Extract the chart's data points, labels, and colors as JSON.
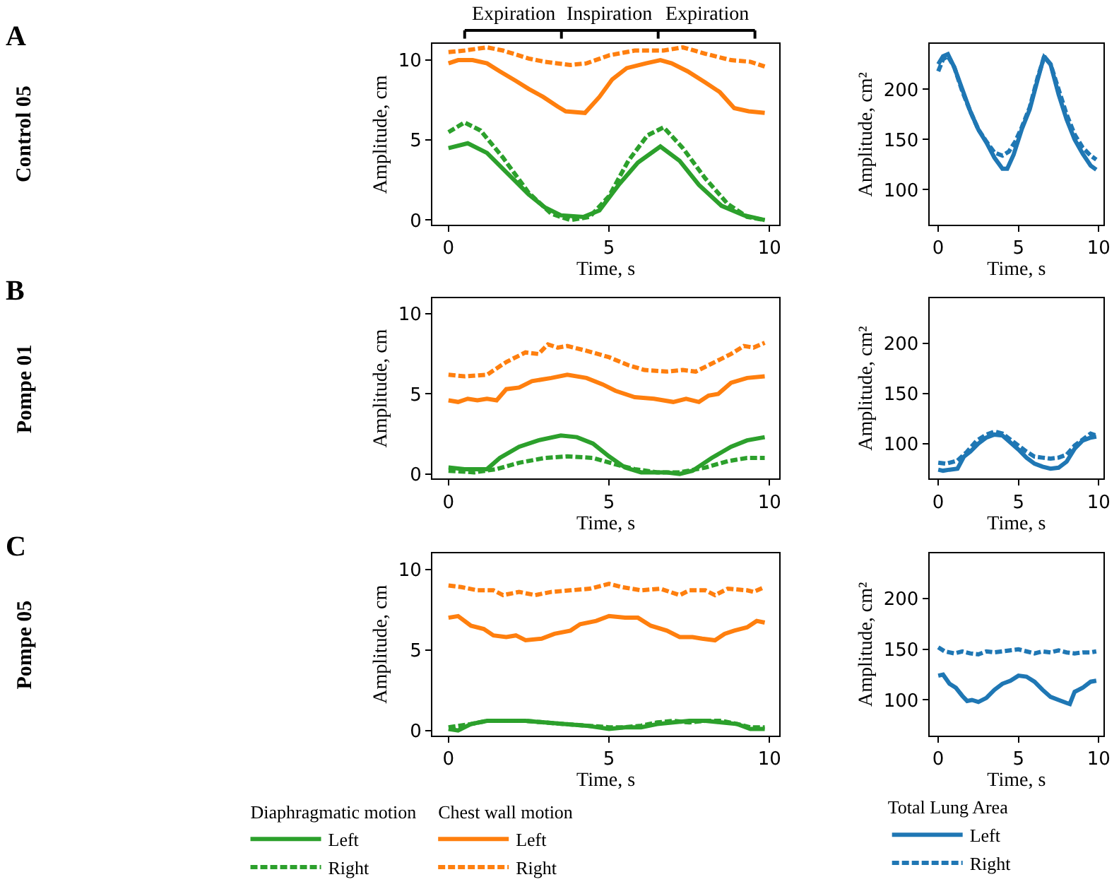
{
  "chart_data": [
    {
      "type": "line",
      "xlabel": "Time, s",
      "ylabel": "Amplitude, cm",
      "xlim": [
        -0.5,
        10.3
      ],
      "xticks": [
        0,
        5,
        10
      ],
      "ylim": [
        -0.3,
        11
      ],
      "yticks": [
        0,
        5,
        10
      ],
      "annotations": [
        "A",
        "Control 05",
        "Expiration",
        "Inspiration",
        "Expiration"
      ],
      "series": [
        {
          "color": "#ff7f0e",
          "line_style": "solid",
          "x": [
            0,
            0.3,
            0.75,
            1.2,
            1.6,
            2.1,
            2.5,
            2.95,
            3.4,
            3.65,
            4.25,
            4.7,
            5.1,
            5.55,
            6.15,
            6.6,
            6.95,
            7.45,
            8.0,
            8.45,
            8.9,
            9.35,
            9.85
          ],
          "values": [
            9.8,
            10.0,
            10.0,
            9.8,
            9.3,
            8.7,
            8.2,
            7.7,
            7.1,
            6.8,
            6.7,
            7.7,
            8.8,
            9.5,
            9.8,
            10.0,
            9.8,
            9.3,
            8.6,
            8.0,
            7.0,
            6.8,
            6.7
          ]
        },
        {
          "color": "#ff7f0e",
          "line_style": "dashed",
          "x": [
            0,
            0.5,
            1.2,
            1.7,
            2.5,
            3.0,
            3.8,
            4.3,
            5.0,
            5.8,
            6.7,
            7.3,
            8.0,
            8.8,
            9.4,
            9.85
          ],
          "values": [
            10.5,
            10.6,
            10.8,
            10.6,
            10.1,
            9.9,
            9.7,
            9.8,
            10.3,
            10.6,
            10.6,
            10.8,
            10.4,
            10.0,
            9.9,
            9.6
          ]
        },
        {
          "color": "#2ca02c",
          "line_style": "solid",
          "x": [
            0,
            0.6,
            1.2,
            1.8,
            2.5,
            3.0,
            3.5,
            4.2,
            4.7,
            5.3,
            5.9,
            6.6,
            7.2,
            7.8,
            8.5,
            9.2,
            9.85
          ],
          "values": [
            4.5,
            4.8,
            4.2,
            3.0,
            1.6,
            0.8,
            0.3,
            0.2,
            0.6,
            2.2,
            3.6,
            4.6,
            3.7,
            2.2,
            0.9,
            0.3,
            0
          ]
        },
        {
          "color": "#2ca02c",
          "line_style": "dashed",
          "x": [
            0,
            0.5,
            1.0,
            1.7,
            2.5,
            3.2,
            3.8,
            4.4,
            5.0,
            5.6,
            6.2,
            6.7,
            7.3,
            8.0,
            8.7,
            9.3,
            9.85
          ],
          "values": [
            5.5,
            6.1,
            5.6,
            3.9,
            1.7,
            0.4,
            0.0,
            0.2,
            1.5,
            3.7,
            5.3,
            5.8,
            4.5,
            2.6,
            1.0,
            0.2,
            0.0
          ]
        }
      ]
    },
    {
      "type": "line",
      "xlabel": "Time, s",
      "ylabel": "Amplitude, cm²",
      "xlim": [
        -0.55,
        10.3
      ],
      "xticks": [
        0,
        5,
        10
      ],
      "ylim": [
        65,
        245
      ],
      "yticks": [
        100,
        150,
        200
      ],
      "series": [
        {
          "color": "#1f77b4",
          "line_style": "solid",
          "x": [
            0,
            0.3,
            0.6,
            1.0,
            1.5,
            2.0,
            2.5,
            3.0,
            3.5,
            4.0,
            4.3,
            4.7,
            5.2,
            5.7,
            6.2,
            6.6,
            7.0,
            7.5,
            8.0,
            8.5,
            9.0,
            9.5,
            9.85
          ],
          "values": [
            225,
            233,
            235,
            222,
            200,
            178,
            160,
            147,
            132,
            121,
            121,
            135,
            160,
            180,
            210,
            233,
            225,
            195,
            170,
            150,
            136,
            124,
            120
          ]
        },
        {
          "color": "#1f77b4",
          "line_style": "dashed",
          "x": [
            0,
            0.3,
            0.6,
            1.0,
            1.5,
            2.0,
            2.5,
            3.0,
            3.5,
            4.0,
            4.4,
            4.8,
            5.2,
            5.7,
            6.2,
            6.6,
            7.0,
            7.5,
            8.0,
            8.5,
            9.0,
            9.5,
            9.85
          ],
          "values": [
            218,
            230,
            233,
            222,
            198,
            178,
            160,
            148,
            137,
            134,
            138,
            148,
            162,
            182,
            212,
            232,
            225,
            200,
            175,
            155,
            142,
            134,
            130
          ]
        }
      ]
    },
    {
      "type": "line",
      "xlabel": "Time, s",
      "ylabel": "Amplitude, cm",
      "xlim": [
        -0.5,
        10.3
      ],
      "xticks": [
        0,
        5,
        10
      ],
      "ylim": [
        -0.3,
        11
      ],
      "yticks": [
        0,
        5,
        10
      ],
      "annotations": [
        "B",
        "Pompe 01"
      ],
      "series": [
        {
          "color": "#ff7f0e",
          "line_style": "solid",
          "x": [
            0,
            0.3,
            0.6,
            0.9,
            1.2,
            1.5,
            1.8,
            2.2,
            2.6,
            3.2,
            3.7,
            4.3,
            4.8,
            5.2,
            5.8,
            6.4,
            7.0,
            7.4,
            7.8,
            8.1,
            8.4,
            8.8,
            9.3,
            9.85
          ],
          "values": [
            4.6,
            4.5,
            4.7,
            4.6,
            4.7,
            4.6,
            5.3,
            5.4,
            5.8,
            6.0,
            6.2,
            6.0,
            5.6,
            5.2,
            4.8,
            4.7,
            4.5,
            4.7,
            4.5,
            4.9,
            5.0,
            5.7,
            6.0,
            6.1
          ]
        },
        {
          "color": "#ff7f0e",
          "line_style": "dashed",
          "x": [
            0,
            0.5,
            1.2,
            1.8,
            2.4,
            2.8,
            3.1,
            3.4,
            3.7,
            4.3,
            5.0,
            5.6,
            6.1,
            6.8,
            7.3,
            7.7,
            8.2,
            8.8,
            9.2,
            9.5,
            9.85
          ],
          "values": [
            6.2,
            6.1,
            6.2,
            7.0,
            7.6,
            7.5,
            8.1,
            7.9,
            8.0,
            7.7,
            7.3,
            6.8,
            6.5,
            6.4,
            6.5,
            6.4,
            6.9,
            7.5,
            8.0,
            7.9,
            8.2
          ]
        },
        {
          "color": "#2ca02c",
          "line_style": "solid",
          "x": [
            0,
            0.5,
            1.2,
            1.6,
            2.2,
            2.8,
            3.5,
            4.0,
            4.5,
            5.0,
            5.5,
            6.0,
            6.8,
            7.2,
            7.6,
            8.2,
            8.8,
            9.3,
            9.85
          ],
          "values": [
            0.4,
            0.3,
            0.3,
            1.0,
            1.7,
            2.1,
            2.4,
            2.3,
            1.9,
            1.1,
            0.4,
            0.1,
            0.1,
            0.0,
            0.2,
            1.0,
            1.7,
            2.1,
            2.3
          ]
        },
        {
          "color": "#2ca02c",
          "line_style": "dashed",
          "x": [
            0,
            0.8,
            1.5,
            2.2,
            3.0,
            3.7,
            4.5,
            5.2,
            5.8,
            6.5,
            7.2,
            8.0,
            8.7,
            9.3,
            9.85
          ],
          "values": [
            0.2,
            0.1,
            0.3,
            0.7,
            1.0,
            1.1,
            1.0,
            0.6,
            0.3,
            0.1,
            0.1,
            0.4,
            0.8,
            1.0,
            1.0
          ]
        }
      ]
    },
    {
      "type": "line",
      "xlabel": "Time, s",
      "ylabel": "Amplitude, cm²",
      "xlim": [
        -0.55,
        10.3
      ],
      "xticks": [
        0,
        5,
        10
      ],
      "ylim": [
        65,
        245
      ],
      "yticks": [
        100,
        150,
        200
      ],
      "series": [
        {
          "color": "#1f77b4",
          "line_style": "solid",
          "x": [
            0,
            0.3,
            0.7,
            1.2,
            1.6,
            2.0,
            2.5,
            3.0,
            3.5,
            4.0,
            4.5,
            5.0,
            5.5,
            6.0,
            6.5,
            7.0,
            7.5,
            8.0,
            8.5,
            9.0,
            9.5,
            9.85
          ],
          "values": [
            74,
            73,
            74,
            75,
            87,
            92,
            100,
            106,
            109,
            108,
            101,
            94,
            86,
            80,
            77,
            75,
            76,
            82,
            95,
            103,
            106,
            107
          ]
        },
        {
          "color": "#1f77b4",
          "line_style": "dashed",
          "x": [
            0,
            0.5,
            1.2,
            1.8,
            2.4,
            3.0,
            3.5,
            4.0,
            4.5,
            5.0,
            5.5,
            6.0,
            6.5,
            7.0,
            7.5,
            8.0,
            8.5,
            9.0,
            9.5,
            9.85
          ],
          "values": [
            81,
            80,
            83,
            92,
            103,
            109,
            112,
            110,
            104,
            98,
            92,
            87,
            86,
            85,
            86,
            89,
            98,
            104,
            110,
            108
          ]
        }
      ]
    },
    {
      "type": "line",
      "xlabel": "Time, s",
      "ylabel": "Amplitude, cm",
      "xlim": [
        -0.5,
        10.3
      ],
      "xticks": [
        0,
        5,
        10
      ],
      "ylim": [
        -0.3,
        11
      ],
      "yticks": [
        0,
        5,
        10
      ],
      "legend": "bottom",
      "annotations": [
        "C",
        "Pompe 05",
        "Diaphragmatic motion",
        "Chest wall motion"
      ],
      "series": [
        {
          "name": "Left",
          "color": "#2ca02c",
          "line_style": "solid",
          "x": [
            0,
            0.3,
            0.7,
            1.2,
            1.8,
            2.4,
            3.0,
            3.6,
            4.3,
            5.0,
            5.5,
            6.0,
            6.5,
            7.0,
            7.5,
            8.0,
            8.5,
            9.0,
            9.4,
            9.85
          ],
          "values": [
            0.1,
            0.0,
            0.4,
            0.6,
            0.6,
            0.6,
            0.5,
            0.4,
            0.3,
            0.1,
            0.2,
            0.2,
            0.4,
            0.5,
            0.6,
            0.6,
            0.5,
            0.4,
            0.1,
            0.1
          ]
        },
        {
          "name": "Right",
          "color": "#2ca02c",
          "line_style": "dashed",
          "x": [
            0,
            0.7,
            1.2,
            1.8,
            2.4,
            3.0,
            3.6,
            4.3,
            5.0,
            5.5,
            6.0,
            6.5,
            7.0,
            7.5,
            8.0,
            8.5,
            9.0,
            9.4,
            9.85
          ],
          "values": [
            0.2,
            0.4,
            0.6,
            0.6,
            0.6,
            0.5,
            0.4,
            0.3,
            0.2,
            0.2,
            0.3,
            0.5,
            0.6,
            0.5,
            0.6,
            0.6,
            0.4,
            0.2,
            0.2
          ]
        },
        {
          "name": "Left",
          "color": "#ff7f0e",
          "line_style": "solid",
          "x": [
            0,
            0.3,
            0.7,
            1.1,
            1.4,
            1.8,
            2.1,
            2.4,
            2.9,
            3.3,
            3.8,
            4.1,
            4.6,
            5.0,
            5.5,
            5.9,
            6.3,
            6.8,
            7.2,
            7.6,
            7.9,
            8.3,
            8.6,
            8.9,
            9.3,
            9.6,
            9.85
          ],
          "values": [
            7.0,
            7.1,
            6.5,
            6.3,
            5.9,
            5.8,
            5.9,
            5.6,
            5.7,
            6.0,
            6.2,
            6.6,
            6.8,
            7.1,
            7.0,
            7.0,
            6.5,
            6.2,
            5.8,
            5.8,
            5.7,
            5.6,
            6.0,
            6.2,
            6.4,
            6.8,
            6.7
          ]
        },
        {
          "name": "Right",
          "color": "#ff7f0e",
          "line_style": "dashed",
          "x": [
            0,
            0.4,
            0.9,
            1.4,
            1.7,
            2.2,
            2.7,
            3.2,
            3.8,
            4.4,
            5.0,
            5.4,
            6.0,
            6.6,
            7.2,
            7.5,
            8.0,
            8.3,
            8.7,
            9.3,
            9.5,
            9.85
          ],
          "values": [
            9.0,
            8.9,
            8.7,
            8.7,
            8.4,
            8.6,
            8.4,
            8.6,
            8.7,
            8.8,
            9.1,
            8.9,
            8.7,
            8.8,
            8.4,
            8.7,
            8.7,
            8.4,
            8.8,
            8.7,
            8.6,
            8.9
          ]
        }
      ]
    },
    {
      "type": "line",
      "xlabel": "Time, s",
      "ylabel": "Amplitude, cm²",
      "xlim": [
        -0.55,
        10.3
      ],
      "xticks": [
        0,
        5,
        10
      ],
      "ylim": [
        65,
        245
      ],
      "yticks": [
        100,
        150,
        200
      ],
      "legend": "bottom",
      "legend_title": "Total Lung Area",
      "series": [
        {
          "name": "Left",
          "color": "#1f77b4",
          "line_style": "solid",
          "x": [
            0,
            0.3,
            0.7,
            1.1,
            1.5,
            1.8,
            2.1,
            2.5,
            3.0,
            3.5,
            4.0,
            4.5,
            5.0,
            5.5,
            6.0,
            6.5,
            7.0,
            7.5,
            8.0,
            8.2,
            8.5,
            9.0,
            9.5,
            9.85
          ],
          "values": [
            124,
            125,
            116,
            112,
            104,
            99,
            100,
            98,
            102,
            110,
            116,
            119,
            124,
            123,
            118,
            110,
            103,
            100,
            97,
            96,
            108,
            112,
            118,
            119
          ]
        },
        {
          "name": "Right",
          "color": "#1f77b4",
          "line_style": "dashed",
          "x": [
            0,
            0.4,
            1.0,
            1.5,
            2.0,
            2.5,
            3.0,
            3.5,
            4.0,
            4.5,
            5.0,
            5.5,
            6.0,
            6.5,
            7.0,
            7.5,
            8.0,
            8.5,
            9.0,
            9.5,
            9.85
          ],
          "values": [
            152,
            148,
            146,
            148,
            146,
            145,
            148,
            147,
            148,
            149,
            150,
            148,
            146,
            148,
            147,
            149,
            147,
            146,
            147,
            147,
            148
          ]
        }
      ]
    }
  ]
}
